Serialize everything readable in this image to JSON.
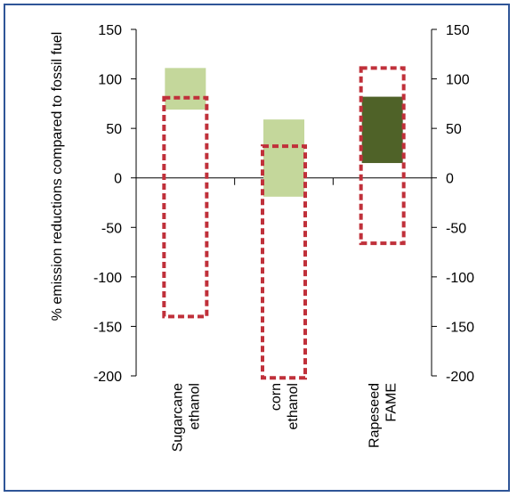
{
  "chart_data": {
    "type": "bar",
    "subtype": "floating-range",
    "ylabel": "% emission reductions compared to fossil fuel",
    "ylim": [
      -200,
      150
    ],
    "yticks": [
      150,
      100,
      50,
      0,
      -50,
      -100,
      -150,
      -200
    ],
    "secondary_y_axis": true,
    "grid": false,
    "categories": [
      {
        "line1": "Sugarcane",
        "line2": "ethanol"
      },
      {
        "line1": "corn",
        "line2": "ethanol"
      },
      {
        "line1": "Rapeseed",
        "line2": "FAME"
      }
    ],
    "series": [
      {
        "style": "filled",
        "colors": [
          "#c4d79b",
          "#c4d79b",
          "#4f6228"
        ],
        "ranges": [
          [
            69,
            111
          ],
          [
            -19,
            59
          ],
          [
            15,
            82
          ]
        ]
      },
      {
        "style": "dashed-outline",
        "color": "#c0303a",
        "ranges": [
          [
            -140,
            81
          ],
          [
            -202,
            32
          ],
          [
            -66,
            111
          ]
        ]
      }
    ]
  }
}
